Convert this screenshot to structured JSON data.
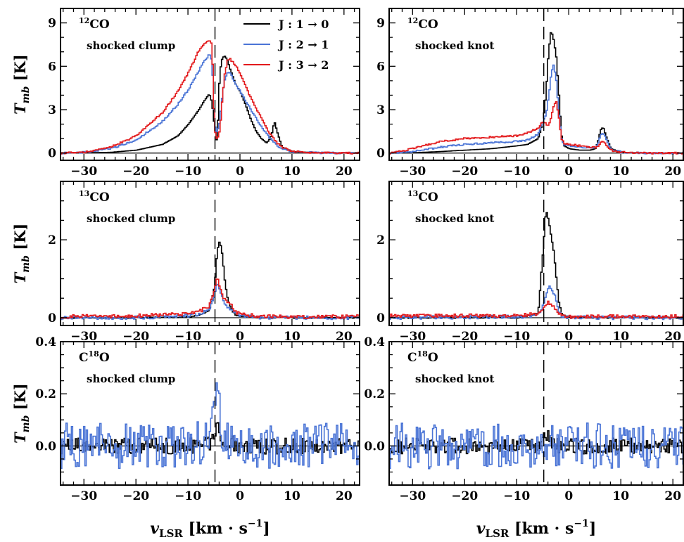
{
  "xlabel": {
    "sym": "v",
    "sub": "LSR",
    "unit": "[km · s",
    "exp": "−1",
    "close": "]"
  },
  "chart_data": [
    {
      "type": "line",
      "panel": "12co-shocked-clump",
      "species": {
        "pre": "",
        "sup": "12",
        "post": "CO"
      },
      "region": "shocked clump",
      "ylabel": "T",
      "ylabel_sub": "mb",
      "ylabel_unit": "[K]",
      "xlim": [
        -34.5,
        23
      ],
      "ylim": [
        -0.5,
        10
      ],
      "xticks": [
        -30,
        -20,
        -10,
        0,
        10,
        20
      ],
      "yticks": [
        0,
        3,
        6,
        9
      ],
      "ytick_labels": [
        "0",
        "3",
        "6",
        "9"
      ],
      "dashed_x": -4.8,
      "legend": {
        "position": "top-right",
        "entries": [
          {
            "label": "J : 1 → 0",
            "color": "#000000"
          },
          {
            "label": "J : 2 → 1",
            "color": "#4a74d6"
          },
          {
            "label": "J : 3 → 2",
            "color": "#e31a1c"
          }
        ]
      },
      "series": [
        {
          "name": "J : 1 → 0",
          "color": "#000000",
          "x": [
            -34.5,
            -30,
            -25,
            -20,
            -15,
            -12,
            -10,
            -8,
            -7,
            -6,
            -5.5,
            -5,
            -4.5,
            -4,
            -3.5,
            -3,
            -2.5,
            -2,
            -1,
            0,
            1,
            2,
            3,
            4,
            5,
            5.5,
            6,
            6.5,
            7,
            8,
            10,
            15,
            20,
            23
          ],
          "y": [
            0.0,
            0.02,
            0.05,
            0.2,
            0.6,
            1.2,
            2.0,
            3.0,
            3.6,
            4.1,
            3.5,
            1.8,
            0.7,
            5.6,
            6.6,
            6.7,
            6.4,
            5.8,
            4.8,
            4.2,
            3.3,
            2.3,
            1.5,
            1.0,
            0.7,
            0.9,
            1.3,
            2.2,
            1.5,
            0.4,
            0.1,
            0.02,
            0.0,
            0.0
          ]
        },
        {
          "name": "J : 2 → 1",
          "color": "#4a74d6",
          "x": [
            -34.5,
            -30,
            -25,
            -20,
            -15,
            -12,
            -10,
            -8,
            -7,
            -6,
            -5.5,
            -5,
            -4.5,
            -4,
            -3.5,
            -3,
            -2.5,
            -2,
            -1,
            0,
            1,
            2,
            3,
            4,
            5,
            6,
            7,
            8,
            10,
            15,
            20,
            23
          ],
          "y": [
            0.0,
            0.05,
            0.3,
            0.9,
            2.2,
            3.4,
            4.4,
            5.7,
            6.4,
            6.8,
            6.4,
            2.0,
            1.4,
            2.2,
            4.0,
            5.2,
            5.6,
            5.5,
            4.8,
            4.2,
            3.6,
            3.0,
            2.4,
            1.8,
            1.3,
            0.9,
            0.5,
            0.3,
            0.1,
            0.02,
            0.0,
            0.0
          ]
        },
        {
          "name": "J : 3 → 2",
          "color": "#e31a1c",
          "x": [
            -34.5,
            -30,
            -25,
            -20,
            -15,
            -12,
            -10,
            -8,
            -7,
            -6,
            -5.5,
            -5,
            -4.5,
            -4,
            -3.5,
            -3,
            -2.5,
            -2,
            -1,
            0,
            1,
            2,
            3,
            4,
            5,
            6,
            7,
            8,
            10,
            15,
            20,
            23
          ],
          "y": [
            0.0,
            0.05,
            0.4,
            1.2,
            2.8,
            4.3,
            5.6,
            7.1,
            7.6,
            7.8,
            7.5,
            1.6,
            0.9,
            1.5,
            3.8,
            5.6,
            6.4,
            6.5,
            6.1,
            5.4,
            4.6,
            3.8,
            3.1,
            2.4,
            1.7,
            1.2,
            0.7,
            0.4,
            0.1,
            0.02,
            0.0,
            0.0
          ]
        }
      ]
    },
    {
      "type": "line",
      "panel": "12co-shocked-knot",
      "species": {
        "pre": "",
        "sup": "12",
        "post": "CO"
      },
      "region": "shocked knot",
      "ylabel": "",
      "ylabel_sub": "",
      "ylabel_unit": "",
      "xlim": [
        -34.5,
        22
      ],
      "ylim": [
        -0.5,
        10
      ],
      "xticks": [
        -30,
        -20,
        -10,
        0,
        10,
        20
      ],
      "yticks": [
        0,
        3,
        6,
        9
      ],
      "ytick_labels": [
        "0",
        "3",
        "6",
        "9"
      ],
      "dashed_x": -4.8,
      "series": [
        {
          "name": "J : 1 → 0",
          "color": "#000000",
          "x": [
            -34.5,
            -30,
            -25,
            -20,
            -15,
            -10,
            -8,
            -6,
            -5.5,
            -5,
            -4.5,
            -4,
            -3.5,
            -3,
            -2.5,
            -2,
            -1.5,
            -1,
            0,
            2,
            4,
            5,
            5.5,
            6,
            6.5,
            7,
            8,
            10,
            15,
            22
          ],
          "y": [
            0.0,
            0.02,
            0.1,
            0.2,
            0.3,
            0.5,
            0.6,
            1.0,
            1.6,
            2.3,
            4.0,
            7.0,
            8.5,
            7.8,
            6.6,
            4.0,
            1.2,
            0.5,
            0.3,
            0.2,
            0.2,
            0.3,
            0.8,
            1.6,
            1.8,
            1.2,
            0.3,
            0.05,
            0.0,
            0.0
          ]
        },
        {
          "name": "J : 2 → 1",
          "color": "#4a74d6",
          "x": [
            -34.5,
            -30,
            -25,
            -20,
            -15,
            -10,
            -8,
            -6,
            -5.5,
            -5,
            -4.5,
            -4,
            -3.5,
            -3,
            -2.5,
            -2,
            -1.5,
            -1,
            0,
            2,
            4,
            5,
            5.5,
            6,
            6.5,
            7,
            8,
            10,
            15,
            22
          ],
          "y": [
            0.0,
            0.1,
            0.4,
            0.6,
            0.7,
            0.8,
            0.9,
            1.3,
            1.8,
            2.2,
            2.6,
            3.8,
            5.5,
            6.1,
            5.0,
            2.6,
            1.0,
            0.6,
            0.5,
            0.4,
            0.4,
            0.4,
            0.7,
            1.2,
            1.4,
            1.0,
            0.3,
            0.05,
            0.0,
            0.0
          ]
        },
        {
          "name": "J : 3 → 2",
          "color": "#e31a1c",
          "x": [
            -34.5,
            -30,
            -25,
            -20,
            -15,
            -10,
            -8,
            -6,
            -5.5,
            -5,
            -4.5,
            -4,
            -3.5,
            -3,
            -2.5,
            -2,
            -1.5,
            -1,
            0,
            2,
            4,
            5,
            5.5,
            6,
            6.5,
            7,
            8,
            10,
            15,
            22
          ],
          "y": [
            0.0,
            0.3,
            0.8,
            1.0,
            1.1,
            1.2,
            1.4,
            1.7,
            2.0,
            2.2,
            2.0,
            1.9,
            2.5,
            3.3,
            3.6,
            2.4,
            1.0,
            0.7,
            0.6,
            0.5,
            0.4,
            0.4,
            0.5,
            0.7,
            0.8,
            0.6,
            0.2,
            0.05,
            0.0,
            0.0
          ]
        }
      ]
    },
    {
      "type": "line",
      "panel": "13co-shocked-clump",
      "species": {
        "pre": "",
        "sup": "13",
        "post": "CO"
      },
      "region": "shocked clump",
      "ylabel": "T",
      "ylabel_sub": "mb",
      "ylabel_unit": "[K]",
      "xlim": [
        -34.5,
        23
      ],
      "ylim": [
        -0.2,
        3.5
      ],
      "xticks": [
        -30,
        -20,
        -10,
        0,
        10,
        20
      ],
      "yticks": [
        0,
        2
      ],
      "ytick_labels": [
        "0",
        "2"
      ],
      "dashed_x": -4.8,
      "series": [
        {
          "name": "J : 1 → 0",
          "color": "#000000",
          "x": [
            -34.5,
            -20,
            -10,
            -8,
            -6,
            -5,
            -4.5,
            -4,
            -3.5,
            -3,
            -2.5,
            -2,
            -1.5,
            -1,
            0,
            5,
            10,
            23
          ],
          "y": [
            0.0,
            0.0,
            0.02,
            0.05,
            0.2,
            0.8,
            1.7,
            2.0,
            1.6,
            0.9,
            0.5,
            0.3,
            0.15,
            0.08,
            0.03,
            0.0,
            0.0,
            0.0
          ]
        },
        {
          "name": "J : 2 → 1",
          "color": "#4a74d6",
          "x": [
            -34.5,
            -20,
            -10,
            -8,
            -6,
            -5,
            -4.5,
            -4,
            -3.5,
            -3,
            -2.5,
            -2,
            -1.5,
            -1,
            0,
            5,
            10,
            23
          ],
          "y": [
            0.0,
            0.0,
            0.05,
            0.08,
            0.2,
            0.6,
            0.9,
            0.7,
            0.5,
            0.35,
            0.25,
            0.2,
            0.15,
            0.1,
            0.05,
            0.0,
            0.0,
            0.0
          ]
        },
        {
          "name": "J : 3 → 2",
          "color": "#e31a1c",
          "x": [
            -34.5,
            -20,
            -10,
            -8,
            -6,
            -5,
            -4.5,
            -4,
            -3.5,
            -3,
            -2.5,
            -2,
            -1.5,
            -1,
            0,
            5,
            10,
            23
          ],
          "y": [
            0.03,
            0.05,
            0.1,
            0.15,
            0.3,
            0.7,
            1.05,
            0.8,
            0.55,
            0.45,
            0.4,
            0.35,
            0.25,
            0.15,
            0.08,
            0.03,
            0.02,
            0.03
          ]
        }
      ]
    },
    {
      "type": "line",
      "panel": "13co-shocked-knot",
      "species": {
        "pre": "",
        "sup": "13",
        "post": "CO"
      },
      "region": "shocked knot",
      "ylabel": "",
      "ylabel_sub": "",
      "ylabel_unit": "",
      "xlim": [
        -34.5,
        22
      ],
      "ylim": [
        -0.2,
        3.5
      ],
      "xticks": [
        -30,
        -20,
        -10,
        0,
        10,
        20
      ],
      "yticks": [
        0,
        2
      ],
      "ytick_labels": [
        "0",
        "2"
      ],
      "dashed_x": -4.8,
      "series": [
        {
          "name": "J : 1 → 0",
          "color": "#000000",
          "x": [
            -34.5,
            -10,
            -6,
            -5,
            -4.5,
            -4,
            -3.5,
            -3,
            -2.5,
            -2,
            -1.5,
            -1,
            0,
            5,
            22
          ],
          "y": [
            0.0,
            0.0,
            0.1,
            1.8,
            2.8,
            2.5,
            2.1,
            1.7,
            1.0,
            0.4,
            0.1,
            0.05,
            0.02,
            0.0,
            0.0
          ]
        },
        {
          "name": "J : 2 → 1",
          "color": "#4a74d6",
          "x": [
            -34.5,
            -10,
            -6,
            -5,
            -4.5,
            -4,
            -3.5,
            -3,
            -2.5,
            -2,
            -1.5,
            -1,
            0,
            5,
            22
          ],
          "y": [
            0.0,
            0.02,
            0.05,
            0.35,
            0.6,
            0.8,
            0.75,
            0.65,
            0.4,
            0.15,
            0.05,
            0.02,
            0.02,
            0.0,
            0.0
          ]
        },
        {
          "name": "J : 3 → 2",
          "color": "#e31a1c",
          "x": [
            -34.5,
            -10,
            -6,
            -5,
            -4.5,
            -4,
            -3.5,
            -3,
            -2.5,
            -2,
            -1.5,
            -1,
            0,
            5,
            22
          ],
          "y": [
            0.05,
            0.05,
            0.1,
            0.25,
            0.35,
            0.4,
            0.35,
            0.3,
            0.2,
            0.1,
            0.05,
            0.05,
            0.03,
            0.03,
            0.03
          ]
        }
      ]
    },
    {
      "type": "line",
      "panel": "c18o-shocked-clump",
      "species": {
        "pre": "C",
        "sup": "18",
        "post": "O"
      },
      "region": "shocked clump",
      "ylabel": "T",
      "ylabel_sub": "mb",
      "ylabel_unit": "[K]",
      "xlim": [
        -34.5,
        23
      ],
      "ylim": [
        -0.15,
        0.4
      ],
      "xticks": [
        -30,
        -20,
        -10,
        0,
        10,
        20
      ],
      "yticks": [
        0.0,
        0.2,
        0.4
      ],
      "ytick_labels": [
        "0.0",
        "0.2",
        "0.4"
      ],
      "dashed_x": -4.8,
      "series": [
        {
          "name": "J : 1 → 0",
          "color": "#000000",
          "x": [
            -34.5,
            -10,
            -6,
            -5,
            -4.5,
            -4,
            -3.5,
            -3,
            -2,
            0,
            23
          ],
          "y": [
            0.0,
            0.0,
            0.01,
            0.04,
            0.08,
            0.06,
            0.03,
            0.02,
            0.01,
            0.0,
            0.0
          ]
        },
        {
          "name": "J : 2 → 1",
          "color": "#4a74d6",
          "x": [
            -34.5,
            -10,
            -6,
            -5,
            -4.5,
            -4,
            -3.5,
            -3,
            -2,
            0,
            23
          ],
          "y": [
            0.0,
            0.0,
            0.02,
            0.1,
            0.2,
            0.12,
            0.06,
            0.03,
            0.01,
            0.0,
            0.0
          ]
        }
      ]
    },
    {
      "type": "line",
      "panel": "c18o-shocked-knot",
      "species": {
        "pre": "C",
        "sup": "18",
        "post": "O"
      },
      "region": "shocked knot",
      "ylabel": "",
      "ylabel_sub": "",
      "ylabel_unit": "",
      "xlim": [
        -34.5,
        22
      ],
      "ylim": [
        -0.15,
        0.4
      ],
      "xticks": [
        -30,
        -20,
        -10,
        0,
        10,
        20
      ],
      "yticks": [
        0.0,
        0.2,
        0.4
      ],
      "ytick_labels": [
        "0.0",
        "0.2",
        "0.4"
      ],
      "dashed_x": -4.8,
      "series": [
        {
          "name": "J : 1 → 0",
          "color": "#000000",
          "x": [
            -34.5,
            -10,
            -6,
            -5,
            -4.5,
            -4,
            -3.5,
            -3,
            -2,
            0,
            22
          ],
          "y": [
            0.0,
            0.0,
            0.0,
            0.02,
            0.04,
            0.03,
            0.02,
            0.01,
            0.0,
            0.0,
            0.0
          ]
        },
        {
          "name": "J : 2 → 1",
          "color": "#4a74d6",
          "x": [
            -34.5,
            -10,
            -6,
            -5,
            -4.5,
            -4,
            -3.5,
            -3,
            -2,
            0,
            22
          ],
          "y": [
            0.0,
            0.0,
            0.0,
            0.0,
            0.0,
            0.0,
            0.0,
            0.0,
            0.0,
            0.0,
            0.0
          ]
        }
      ]
    }
  ]
}
